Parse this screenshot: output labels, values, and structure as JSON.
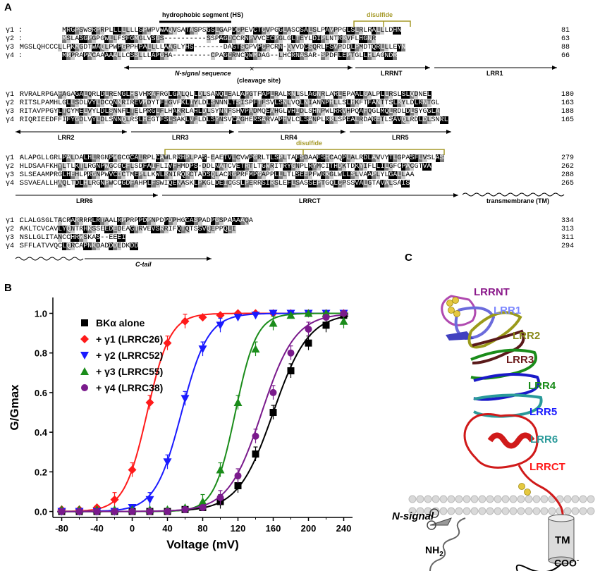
{
  "panels": {
    "a": "A",
    "b": "B",
    "c": "C"
  },
  "alignment": {
    "blocks": [
      {
        "names": [
          "γ1 :",
          "γ2 :",
          "γ3 :",
          "γ4 :"
        ],
        "seqs": [
          "          MRGPSWSRPRPLLLLLLLSPWPVWAQVSATASPSGSLGAPDCPEVCTCVPGGLASCSALSLPAVPPGLSLRLRALLLDHN",
          "          MSLASGPGPGWLLFSFGMGLVSGS----------SSPAGDCCRNPVVCECPGLGLTEYLDIPLNTRRVFLHGNR",
          "MGSLQHCCCLLPKMGDTWAQLPWPGPPHPALLLLAAGLYHS-------DAGTSCPVPCPCRN-QVVDCSQRLFSVPDDLPMDTQRLLLEYN",
          "          MRPRAPACAAAAALLCSSLLLAPGHA---------CPAGCRNCQWMDAG--LHCRNASAR-SPDFLEPTGLLHLAGNDR"
        ],
        "nums": [
          "81",
          "63",
          "88",
          "66"
        ]
      },
      {
        "names": [
          "γ1 :",
          "γ2 :",
          "γ3 :",
          "γ4 :"
        ],
        "seqs": [
          "RVRALRPGAFAGAGALQRLDLRENGLHSVHRAFRGLGALQLLDLSANQLEALAPGTFAPLRALRNLSLAGNRLARLEPAALGALPLLRSLSLQDNEL",
          "RITSLPAMHLGLLSDLVYLDCQNNRIREVMDYTFIGVFKLIYLDLSNNNLTSISPFTFSVLSNLVQLNIANNPHLLSLHKFTFANTTSLRYLDLRNTGL",
          "RITAVPPGYLTCYMELVYLDLSNNFLTELPRGLFLHAKRLAHLDLSYNNFSHVPADMQEAHGLVHIDLSHNPWLRRVHPQAFQGLMQLRDLDLSYGGLA",
          "RIQRIEEDFFIFYGDLVYLDLSNNQLRSLHEGTFSLSAKLVFLDLSYNSVCAGHERSARVAPHVLCLSANPLRRLSPEALRDARETLSAVQLRDLDLSNRL"
        ],
        "nums": [
          "180",
          "163",
          "188",
          "165"
        ]
      },
      {
        "names": [
          "γ1 :",
          "γ2 :",
          "γ3 :",
          "γ4 :"
        ],
        "seqs": [
          "ALAPGLLGRLPALDALHLRGNPWGCGCALRPLCAWLRRHPLPAS-EAETVLCVWPGRLTLSPLTAFSDAAFSHCAQPLALRDLAVVYTLGPASFLVSLAS",
          "HLDSAAFKHYLTLKTLRGNPWGCGCFLSDFAIFLIVFHMDPS-DDLNATCVETRTLTGWRITRYGNPLRYMCITHDKTDKYIFLLILGFCPACGTVA",
          "SLSEAAMPRGLHEHLPRGNPWVCDCTMEPLLKWLRNIRQRCTADSQLACRGPRFMPGAPPLLLTLSEEPFWRKGLWLLSLVAAPLYLGALLAA",
          "SSVAEALLHAQLTDLHLRGNPWCCGDFAHPLFSWIQENASKLPKGLDEICGSLPERRSIRSLEFLSASSEPTGQLCPSSVALGTAVALSAIS"
        ],
        "nums": [
          "279",
          "262",
          "288",
          "265"
        ]
      },
      {
        "names": [
          "γ1 :",
          "γ2 :",
          "γ3 :",
          "γ4 :"
        ],
        "seqs": [
          "CLALGSGLTACRARRRRLRTAALRPPRPPDPNPDPDPHGCASPADPGSPAAAAQA",
          "AKLTCVCAVLYQNTRHKSSEEDEDEAGTRVEVSRRIFQTQTSSVQEPPQLI",
          "NSLLGLITANCCHRWSKAS--EEEI",
          "SFFLATVVQCLQRCAPNKDADDDEDKDD"
        ],
        "nums": [
          "334",
          "313",
          "311",
          "294"
        ]
      }
    ],
    "labels": {
      "hs": "hydrophobic segment (HS)",
      "disulfide1": "disulfide",
      "disulfide2": "disulfide",
      "nsignal": "N-signal sequence",
      "cleavage": "(cleavage site)",
      "lrrnt": "LRRNT",
      "lrr1": "LRR1",
      "lrr2": "LRR2",
      "lrr3": "LRR3",
      "lrr4": "LRR4",
      "lrr5": "LRR5",
      "lrr6": "LRR6",
      "lrrct": "LRRCT",
      "tm": "transmembrane (TM)",
      "ctail": "C-tail"
    }
  },
  "chart_data": {
    "type": "scatter",
    "xlabel": "Voltage (mV)",
    "ylabel": "G/Gmax",
    "xlim": [
      -90,
      250
    ],
    "ylim": [
      -0.03,
      1.08
    ],
    "xticks": [
      "-80",
      "-40",
      "0",
      "40",
      "80",
      "120",
      "160",
      "200",
      "240"
    ],
    "yticks": [
      "0.0",
      "0.2",
      "0.4",
      "0.6",
      "0.8",
      "1.0"
    ],
    "legend_position": "top-left",
    "series": [
      {
        "name": "BKα alone",
        "color": "#000000",
        "marker": "square",
        "x": [
          -80,
          -60,
          -40,
          -20,
          0,
          20,
          40,
          60,
          80,
          100,
          120,
          140,
          160,
          180,
          200,
          220,
          240
        ],
        "y": [
          0.0,
          0.0,
          0.0,
          0.0,
          0.0,
          0.0,
          0.0,
          0.01,
          0.02,
          0.05,
          0.13,
          0.29,
          0.5,
          0.71,
          0.85,
          0.94,
          0.99
        ]
      },
      {
        "name": "+ γ1 (LRRC26)",
        "color": "#ff1a1a",
        "marker": "diamond",
        "x": [
          -80,
          -60,
          -40,
          -20,
          0,
          20,
          40,
          60,
          80,
          100,
          120,
          140,
          160,
          180,
          200,
          220,
          240
        ],
        "y": [
          0.01,
          0.01,
          0.02,
          0.06,
          0.21,
          0.55,
          0.85,
          0.96,
          0.98,
          0.99,
          1.0,
          1.0,
          1.0,
          1.0,
          1.0,
          1.0,
          1.0
        ]
      },
      {
        "name": "+ γ2 (LRRC52)",
        "color": "#1a1aff",
        "marker": "triangle-down",
        "x": [
          -80,
          -60,
          -40,
          -20,
          0,
          20,
          40,
          60,
          80,
          100,
          120,
          140,
          160,
          180,
          200,
          220,
          240
        ],
        "y": [
          0.0,
          0.0,
          0.0,
          0.0,
          0.02,
          0.06,
          0.25,
          0.57,
          0.82,
          0.94,
          0.98,
          0.99,
          1.0,
          1.0,
          1.0,
          1.0,
          1.0
        ]
      },
      {
        "name": "+ γ3 (LRRC55)",
        "color": "#1a8c1a",
        "marker": "triangle-up",
        "x": [
          -80,
          -60,
          -40,
          -20,
          0,
          20,
          40,
          60,
          80,
          100,
          120,
          140,
          160,
          180,
          200,
          220,
          240
        ],
        "y": [
          0.01,
          0.01,
          0.01,
          0.01,
          0.01,
          0.01,
          0.01,
          0.02,
          0.05,
          0.21,
          0.55,
          0.82,
          0.95,
          0.99,
          1.0,
          1.0,
          0.96
        ]
      },
      {
        "name": "+ γ4 (LRRC38)",
        "color": "#7a1a8c",
        "marker": "circle",
        "x": [
          -80,
          -60,
          -40,
          -20,
          0,
          20,
          40,
          60,
          80,
          100,
          120,
          140,
          160,
          180,
          200,
          220,
          240
        ],
        "y": [
          0.0,
          0.0,
          0.0,
          0.0,
          0.0,
          0.0,
          0.0,
          0.01,
          0.02,
          0.07,
          0.18,
          0.38,
          0.6,
          0.8,
          0.92,
          0.98,
          1.0
        ]
      }
    ],
    "curve_params": {
      "BKα alone": {
        "vhalf": 160,
        "k": 20
      },
      "+ γ1 (LRRC26)": {
        "vhalf": 17,
        "k": 13
      },
      "+ γ2 (LRRC52)": {
        "vhalf": 56,
        "k": 15
      },
      "+ γ3 (LRRC55)": {
        "vhalf": 117,
        "k": 12
      },
      "+ γ4 (LRRC38)": {
        "vhalf": 147,
        "k": 19
      }
    }
  },
  "structure": {
    "domain_labels": [
      {
        "text": "LRRNT",
        "color": "#8b1a8b"
      },
      {
        "text": "LRR1",
        "color": "#7b86ff"
      },
      {
        "text": "LRR2",
        "color": "#8a8a1a"
      },
      {
        "text": "LRR3",
        "color": "#6b1a1a"
      },
      {
        "text": "LRR4",
        "color": "#1a8c1a"
      },
      {
        "text": "LRR5",
        "color": "#1a1aff"
      },
      {
        "text": "LRR6",
        "color": "#2a9a9a"
      },
      {
        "text": "LRRCT",
        "color": "#ff1a1a"
      }
    ],
    "tm": "TM",
    "nsignal": "N-signal",
    "nh2": "NH",
    "nh2_sub": "2",
    "coo": "COO",
    "coo_sup": "-"
  }
}
